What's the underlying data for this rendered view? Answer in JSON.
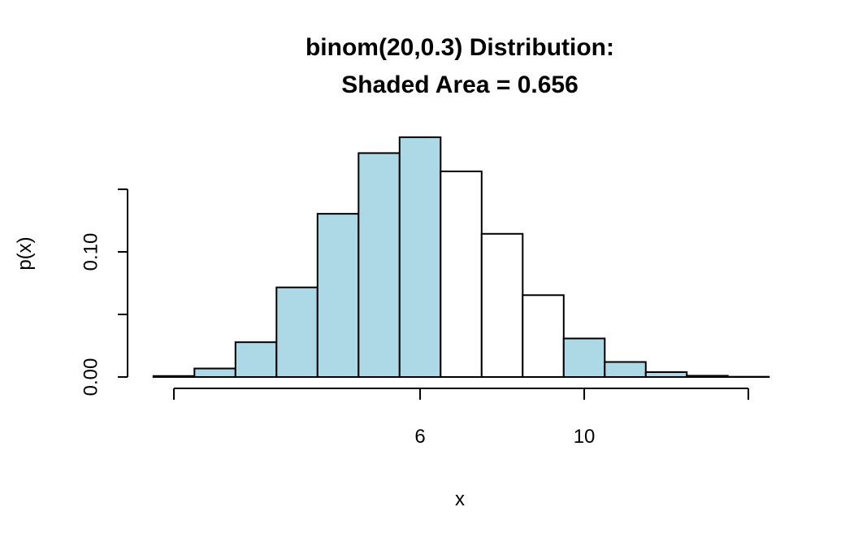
{
  "chart_data": {
    "type": "histogram",
    "title": [
      "binom(20,0.3) Distribution:",
      "Shaded Area = 0.656"
    ],
    "x_label": "x",
    "y_label": "p(x)",
    "bins": [
      -0.5,
      0.5,
      1.5,
      2.5,
      3.5,
      4.5,
      5.5,
      6.5,
      7.5,
      8.5,
      9.5,
      10.5,
      11.5,
      12.5,
      13.5,
      14.5
    ],
    "values": [
      0.0008,
      0.0068,
      0.0278,
      0.0716,
      0.1304,
      0.1789,
      0.1916,
      0.1643,
      0.1144,
      0.0654,
      0.0308,
      0.012,
      0.0039,
      0.001,
      0.0002
    ],
    "colors": [
      "lightblue",
      "lightblue",
      "lightblue",
      "lightblue",
      "lightblue",
      "lightblue",
      "lightblue",
      "white",
      "white",
      "white",
      "lightblue",
      "lightblue",
      "lightblue",
      "lightblue",
      "lightblue"
    ],
    "xlim": [
      -1.1,
      15.1
    ],
    "ylim": [
      0,
      0.1993
    ],
    "xticks": [
      {
        "value": 0,
        "label": null
      },
      6,
      10,
      {
        "value": 14,
        "label": null
      }
    ],
    "yticks": [
      {
        "value": 0,
        "label": "0.00"
      },
      {
        "value": 0.05,
        "label": null
      },
      {
        "value": 0.1,
        "label": "0.10"
      },
      {
        "value": 0.15,
        "label": null
      }
    ]
  }
}
